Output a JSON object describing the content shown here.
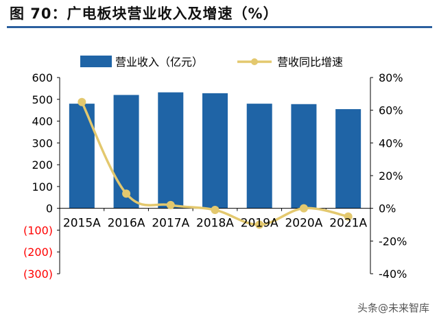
{
  "figure_title": "图 70：广电板块营业收入及增速（%）",
  "watermark": "头条@未来智库",
  "colors": {
    "bar": "#1f64a6",
    "line": "#e3c86e",
    "axis": "#000000",
    "negative_tick": "#ff0000",
    "title_rule": "#2a5f9e"
  },
  "chart_data": {
    "type": "bar",
    "title": "",
    "categories": [
      "2015A",
      "2016A",
      "2017A",
      "2018A",
      "2019A",
      "2020A",
      "2021A"
    ],
    "series": [
      {
        "name": "营业收入（亿元）",
        "type": "bar",
        "axis": "left",
        "values": [
          480,
          520,
          532,
          528,
          480,
          478,
          455
        ]
      },
      {
        "name": "营收同比增速",
        "type": "line",
        "axis": "right",
        "values": [
          65,
          9,
          2,
          -1,
          -10,
          0,
          -5
        ]
      }
    ],
    "left_axis": {
      "ylim": [
        -300,
        600
      ],
      "ticks": [
        600,
        500,
        400,
        300,
        200,
        100,
        0,
        -100,
        -200,
        -300
      ],
      "tick_labels": [
        "600",
        "500",
        "400",
        "300",
        "200",
        "100",
        "0",
        "(100)",
        "(200)",
        "(300)"
      ]
    },
    "right_axis": {
      "ylim": [
        -40,
        80
      ],
      "ticks": [
        80,
        60,
        40,
        20,
        0,
        -20,
        -40
      ],
      "tick_labels": [
        "80%",
        "60%",
        "40%",
        "20%",
        "0%",
        "-20%",
        "-40%"
      ]
    },
    "legend_position": "top"
  }
}
